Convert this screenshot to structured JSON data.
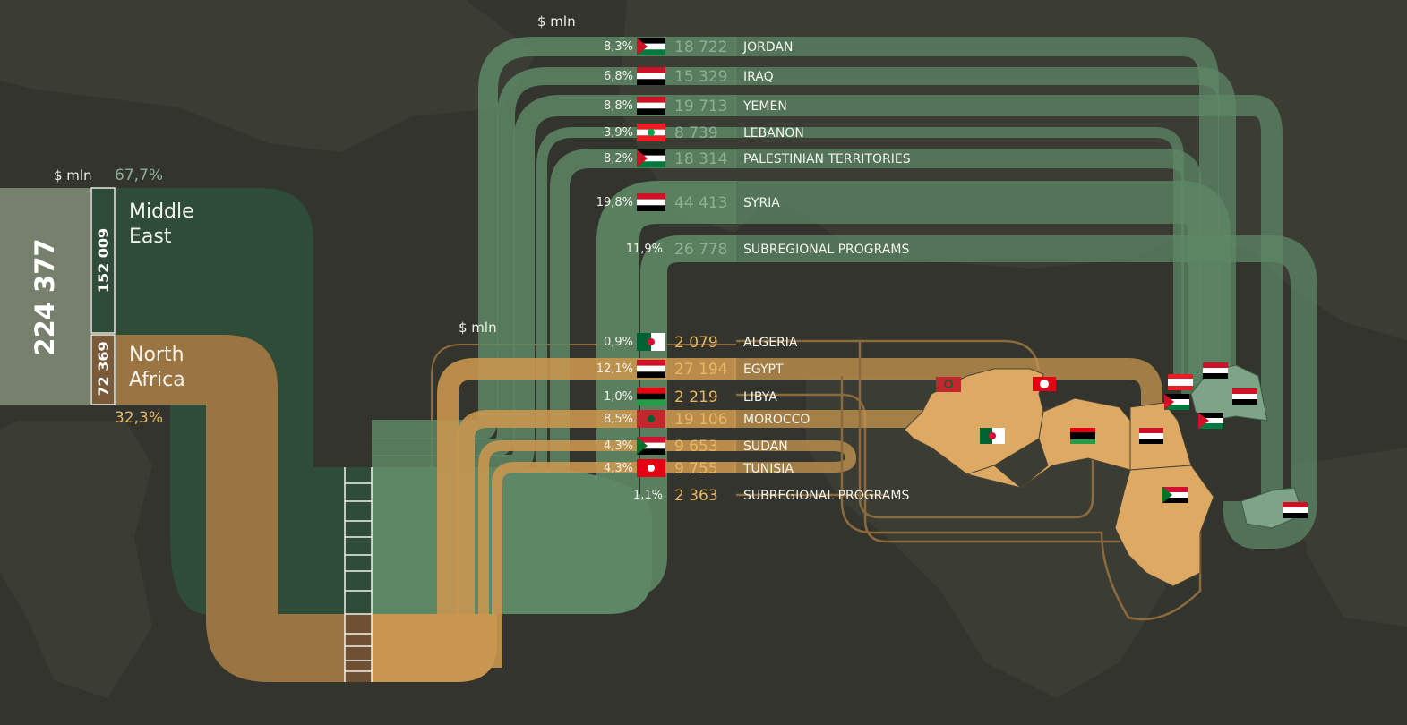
{
  "colors": {
    "background": "#33342d",
    "continent": "#3a3c34",
    "middle_east_dark": "#2f4c38",
    "middle_east_band": "#5e8765",
    "middle_east_light": "#7da487",
    "north_africa_dark": "#9a7542",
    "north_africa_band": "#c8964f",
    "north_africa_light": "#deaa63",
    "total_box": "#76806d",
    "me_text": "#8fae95",
    "na_text": "#e6b766"
  },
  "totals": {
    "unit": "$ mln",
    "total": "224 377",
    "middle_east": {
      "name": "Middle East",
      "value": "152 009",
      "share": "67,7%"
    },
    "north_africa": {
      "name": "North Africa",
      "value": "72 369",
      "share": "32,3%"
    }
  },
  "middle_east": {
    "unit": "$ mln",
    "items": [
      {
        "pct": "8,3%",
        "value": "18 722",
        "name": "JORDAN",
        "flag": "jordan-flag-icon"
      },
      {
        "pct": "6,8%",
        "value": "15 329",
        "name": "IRAQ",
        "flag": "iraq-flag-icon"
      },
      {
        "pct": "8,8%",
        "value": "19 713",
        "name": "YEMEN",
        "flag": "yemen-flag-icon"
      },
      {
        "pct": "3,9%",
        "value": "8 739",
        "name": "LEBANON",
        "flag": "lebanon-flag-icon"
      },
      {
        "pct": "8,2%",
        "value": "18 314",
        "name": "PALESTINIAN TERRITORIES",
        "flag": "palestine-flag-icon"
      },
      {
        "pct": "19,8%",
        "value": "44 413",
        "name": "SYRIA",
        "flag": "syria-flag-icon"
      },
      {
        "pct": "11,9%",
        "value": "26 778",
        "name": "SUBREGIONAL PROGRAMS",
        "flag": ""
      }
    ]
  },
  "north_africa": {
    "unit": "$ mln",
    "items": [
      {
        "pct": "0,9%",
        "value": "2 079",
        "name": "ALGERIA",
        "flag": "algeria-flag-icon"
      },
      {
        "pct": "12,1%",
        "value": "27 194",
        "name": "EGYPT",
        "flag": "egypt-flag-icon"
      },
      {
        "pct": "1,0%",
        "value": "2 219",
        "name": "LIBYA",
        "flag": "libya-flag-icon"
      },
      {
        "pct": "8,5%",
        "value": "19 106",
        "name": "MOROCCO",
        "flag": "morocco-flag-icon"
      },
      {
        "pct": "4,3%",
        "value": "9 653",
        "name": "SUDAN",
        "flag": "sudan-flag-icon"
      },
      {
        "pct": "4,3%",
        "value": "9 755",
        "name": "TUNISIA",
        "flag": "tunisia-flag-icon"
      },
      {
        "pct": "1,1%",
        "value": "2 363",
        "name": "SUBREGIONAL PROGRAMS",
        "flag": ""
      }
    ]
  },
  "chart_data": {
    "type": "bar",
    "unit": "$ mln",
    "total": 224377,
    "groups": [
      {
        "name": "Middle East",
        "total": 152009,
        "share": 67.7,
        "categories": [
          "JORDAN",
          "IRAQ",
          "YEMEN",
          "LEBANON",
          "PALESTINIAN TERRITORIES",
          "SYRIA",
          "SUBREGIONAL PROGRAMS"
        ],
        "values": [
          18722,
          15329,
          19713,
          8739,
          18314,
          44413,
          26778
        ],
        "shares": [
          8.3,
          6.8,
          8.8,
          3.9,
          8.2,
          19.8,
          11.9
        ]
      },
      {
        "name": "North Africa",
        "total": 72369,
        "share": 32.3,
        "categories": [
          "ALGERIA",
          "EGYPT",
          "LIBYA",
          "MOROCCO",
          "SUDAN",
          "TUNISIA",
          "SUBREGIONAL PROGRAMS"
        ],
        "values": [
          2079,
          27194,
          2219,
          19106,
          9653,
          9755,
          2363
        ],
        "shares": [
          0.9,
          12.1,
          1.0,
          8.5,
          4.3,
          4.3,
          1.1
        ]
      }
    ]
  }
}
